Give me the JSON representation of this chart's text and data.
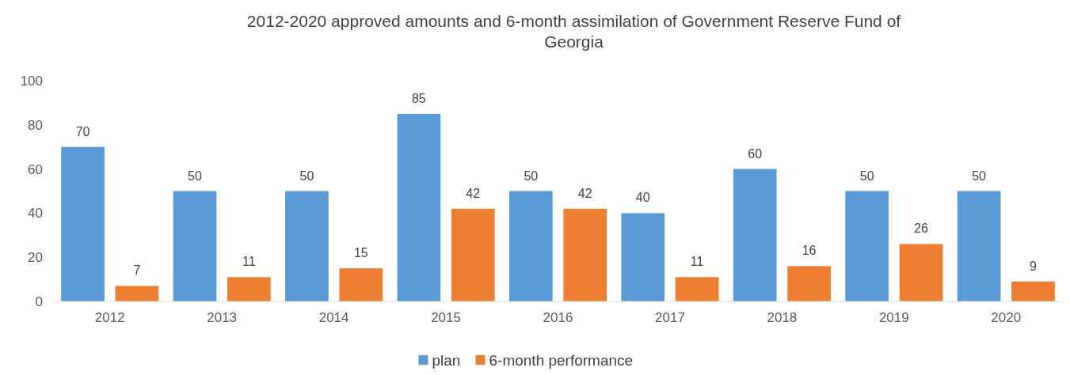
{
  "chart_data": {
    "type": "bar",
    "title": "2012-2020 approved amounts and 6-month assimilation of Government Reserve Fund of Georgia",
    "categories": [
      "2012",
      "2013",
      "2014",
      "2015",
      "2016",
      "2017",
      "2018",
      "2019",
      "2020"
    ],
    "series": [
      {
        "name": "plan",
        "color": "#5b9bd5",
        "values": [
          70,
          50,
          50,
          85,
          50,
          40,
          60,
          50,
          50
        ]
      },
      {
        "name": "6-month performance",
        "color": "#ed7d31",
        "values": [
          7,
          11,
          15,
          42,
          42,
          11,
          16,
          26,
          9
        ]
      }
    ],
    "ylim": [
      0,
      100
    ],
    "yticks": [
      0,
      20,
      40,
      60,
      80,
      100
    ],
    "grid": false,
    "legend": "bottom",
    "data_labels": true
  }
}
